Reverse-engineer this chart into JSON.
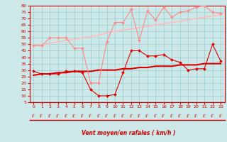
{
  "x": [
    0,
    1,
    2,
    3,
    4,
    5,
    6,
    7,
    8,
    9,
    10,
    11,
    12,
    13,
    14,
    15,
    16,
    17,
    18,
    19,
    20,
    21,
    22,
    23
  ],
  "series": [
    {
      "name": "rafales_points",
      "color": "#ff8888",
      "linewidth": 0.8,
      "marker": "D",
      "markersize": 2.0,
      "values": [
        49,
        49,
        55,
        55,
        55,
        47,
        47,
        20,
        20,
        52,
        67,
        67,
        77,
        53,
        76,
        69,
        79,
        71,
        75,
        76,
        79,
        80,
        75,
        74
      ]
    },
    {
      "name": "rafales_trend",
      "color": "#ffbbbb",
      "linewidth": 1.2,
      "marker": null,
      "values": [
        49,
        50,
        51,
        52,
        53,
        54,
        55,
        56,
        57,
        59,
        60,
        61,
        62,
        63,
        64,
        65,
        66,
        67,
        68,
        69,
        70,
        71,
        72,
        73
      ]
    },
    {
      "name": "vent_moyen_points",
      "color": "#dd0000",
      "linewidth": 0.8,
      "marker": "D",
      "markersize": 2.0,
      "values": [
        29,
        27,
        27,
        27,
        29,
        29,
        28,
        15,
        10,
        10,
        11,
        28,
        45,
        45,
        41,
        41,
        42,
        38,
        36,
        30,
        31,
        31,
        50,
        37
      ]
    },
    {
      "name": "vent_moyen_trend",
      "color": "#dd0000",
      "linewidth": 1.5,
      "marker": null,
      "values": [
        26,
        27,
        27,
        28,
        28,
        29,
        29,
        29,
        30,
        30,
        30,
        31,
        31,
        32,
        32,
        33,
        33,
        33,
        34,
        34,
        34,
        35,
        35,
        35
      ]
    }
  ],
  "xlabel": "Vent moyen/en rafales ( km/h )",
  "xlim": [
    -0.5,
    23.5
  ],
  "ylim": [
    5,
    80
  ],
  "yticks": [
    5,
    10,
    15,
    20,
    25,
    30,
    35,
    40,
    45,
    50,
    55,
    60,
    65,
    70,
    75,
    80
  ],
  "xticks": [
    0,
    1,
    2,
    3,
    4,
    5,
    6,
    7,
    8,
    9,
    10,
    11,
    12,
    13,
    14,
    15,
    16,
    17,
    18,
    19,
    20,
    21,
    22,
    23
  ],
  "bg_color": "#cce8e8",
  "grid_color": "#99cccc",
  "text_color": "#cc0000",
  "axis_color": "#cc0000"
}
